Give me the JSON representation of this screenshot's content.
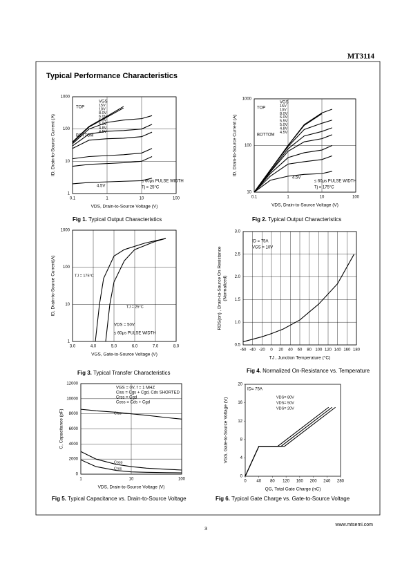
{
  "header": {
    "part_number": "MT3114"
  },
  "section_title": "Typical Performance Characteristics",
  "chart_data": [
    {
      "type": "line",
      "caption_label": "Fig 1.",
      "caption": "Typical Output Characteristics",
      "xlabel": "VDS, Drain-to-Source Voltage (V)",
      "ylabel": "ID, Drain-to-Source Current (A)",
      "xscale": "log",
      "yscale": "log",
      "grid": true,
      "xlim": [
        0.1,
        100
      ],
      "ylim": [
        1,
        1000
      ],
      "xticks": [
        0.1,
        1,
        10,
        100
      ],
      "yticks": [
        1,
        10,
        100,
        1000
      ],
      "annotations": [
        "VGS",
        "TOP",
        "BOTTOM",
        "≤ 60μs PULSE WIDTH",
        "Tj = 25°C",
        "4.5V"
      ],
      "series": [
        {
          "name": "15V",
          "color": "#000000",
          "x": [
            0.1,
            0.3,
            1,
            3
          ],
          "values": [
            40,
            120,
            250,
            500
          ]
        },
        {
          "name": "10V",
          "color": "#000000",
          "x": [
            0.1,
            0.3,
            1,
            3
          ],
          "values": [
            38,
            115,
            235,
            450
          ]
        },
        {
          "name": "8.0V",
          "color": "#000000",
          "x": [
            0.1,
            0.3,
            1,
            3,
            10,
            20
          ],
          "values": [
            35,
            100,
            160,
            190,
            210,
            260
          ]
        },
        {
          "name": "6.0V",
          "color": "#000000",
          "x": [
            0.1,
            0.3,
            1,
            3,
            10,
            20
          ],
          "values": [
            30,
            70,
            85,
            90,
            100,
            140
          ]
        },
        {
          "name": "5.5V",
          "color": "#000000",
          "x": [
            0.1,
            0.3,
            1,
            3,
            10,
            20
          ],
          "values": [
            25,
            45,
            50,
            52,
            58,
            80
          ]
        },
        {
          "name": "5.0V",
          "color": "#000000",
          "x": [
            0.1,
            0.3,
            1,
            3,
            10,
            20
          ],
          "values": [
            12,
            14,
            15,
            16,
            18,
            25
          ]
        },
        {
          "name": "4.8V",
          "color": "#000000",
          "x": [
            0.1,
            0.3,
            1,
            3,
            10,
            20
          ],
          "values": [
            7,
            8,
            8.5,
            9,
            10,
            14
          ]
        },
        {
          "name": "4.5V",
          "color": "#000000",
          "x": [
            0.1,
            0.3,
            1,
            3,
            10,
            20
          ],
          "values": [
            2,
            2.2,
            2.3,
            2.4,
            2.5,
            3
          ]
        }
      ]
    },
    {
      "type": "line",
      "caption_label": "Fig 2.",
      "caption": "Typical Output Characteristics",
      "xlabel": "VDS, Drain-to-Source Voltage (V)",
      "ylabel": "ID, Drain-to-Source Current (A)",
      "xscale": "log",
      "yscale": "log",
      "grid": true,
      "xlim": [
        0.1,
        100
      ],
      "ylim": [
        10,
        1000
      ],
      "xticks": [
        0.1,
        1,
        10,
        100
      ],
      "yticks": [
        10,
        100,
        1000
      ],
      "annotations": [
        "VGS",
        "TOP",
        "BOTTOM",
        "≤ 60μs PULSE WIDTH",
        "Tj = 175°C",
        "4.5V"
      ],
      "series": [
        {
          "name": "15V",
          "color": "#000000",
          "x": [
            0.1,
            0.3,
            1,
            3,
            10,
            20
          ],
          "values": [
            10,
            30,
            100,
            280,
            500,
            600
          ]
        },
        {
          "name": "10V",
          "color": "#000000",
          "x": [
            0.1,
            0.3,
            1,
            3,
            10
          ],
          "values": [
            10,
            30,
            100,
            270,
            480
          ]
        },
        {
          "name": "8.0V",
          "color": "#000000",
          "x": [
            0.1,
            0.3,
            1,
            3,
            10,
            20
          ],
          "values": [
            10,
            30,
            95,
            220,
            300,
            350
          ]
        },
        {
          "name": "6.0V",
          "color": "#000000",
          "x": [
            0.1,
            0.3,
            1,
            3,
            10,
            20
          ],
          "values": [
            10,
            28,
            85,
            160,
            200,
            240
          ]
        },
        {
          "name": "5.5V",
          "color": "#000000",
          "x": [
            0.1,
            0.3,
            1,
            3,
            10,
            20
          ],
          "values": [
            10,
            27,
            75,
            120,
            140,
            170
          ]
        },
        {
          "name": "5.0V",
          "color": "#000000",
          "x": [
            0.1,
            0.3,
            1,
            3,
            10,
            20
          ],
          "values": [
            10,
            25,
            55,
            70,
            80,
            100
          ]
        },
        {
          "name": "4.8V",
          "color": "#000000",
          "x": [
            0.1,
            0.3,
            1,
            3,
            10,
            20
          ],
          "values": [
            10,
            22,
            40,
            45,
            50,
            60
          ]
        },
        {
          "name": "4.5V",
          "color": "#000000",
          "x": [
            0.1,
            0.3,
            1,
            3,
            10,
            20
          ],
          "values": [
            10,
            18,
            22,
            24,
            25,
            28
          ]
        }
      ]
    },
    {
      "type": "line",
      "caption_label": "Fig 3.",
      "caption": "Typical Transfer Characteristics",
      "xlabel": "VGS, Gate-to-Source Voltage (V)",
      "ylabel": "ID, Drain-to-Source Current(A)",
      "xscale": "linear",
      "yscale": "log",
      "grid": true,
      "xlim": [
        3,
        8
      ],
      "ylim": [
        1,
        1000
      ],
      "xticks": [
        {
          "value": 3,
          "label": "3.0"
        },
        {
          "value": 4,
          "label": "4.0"
        },
        {
          "value": 5,
          "label": "5.0"
        },
        {
          "value": 6,
          "label": "6.0"
        },
        {
          "value": 7,
          "label": "7.0"
        },
        {
          "value": 8,
          "label": "8.0"
        }
      ],
      "yticks": [
        1,
        10,
        100,
        1000
      ],
      "annotations": [
        "VDS = 50V",
        "≤ 60μs PULSE WIDTH"
      ],
      "series": [
        {
          "name": "TJ = 175°C",
          "color": "#000000",
          "x": [
            4.1,
            4.3,
            4.5,
            5,
            5.5,
            6.5,
            7.5
          ],
          "values": [
            1,
            10,
            50,
            200,
            300,
            450,
            600
          ]
        },
        {
          "name": "TJ = 25°C",
          "color": "#000000",
          "x": [
            4.6,
            4.8,
            5,
            5.5,
            6,
            7,
            7.5
          ],
          "values": [
            1,
            10,
            40,
            150,
            300,
            500,
            600
          ]
        }
      ]
    },
    {
      "type": "line",
      "caption_label": "Fig 4.",
      "caption": "Normalized On-Resistance vs. Temperature",
      "xlabel": "TJ , Junction Temperature (°C)",
      "ylabel": "RDS(on) , Drain-to-Source On Resistance",
      "ylabel_note": "(Normalized)",
      "xscale": "linear",
      "yscale": "linear",
      "grid": true,
      "xlim": [
        -60,
        180
      ],
      "ylim": [
        0.5,
        3
      ],
      "xticks": [
        -60,
        -40,
        -20,
        0,
        20,
        40,
        60,
        80,
        100,
        120,
        140,
        160,
        180
      ],
      "yticks": [
        0.5,
        {
          "value": 1,
          "label": "1.0"
        },
        1.5,
        {
          "value": 2,
          "label": "2.0"
        },
        2.5,
        {
          "value": 3,
          "label": "3.0"
        }
      ],
      "annotations": [
        "ID = 75A",
        "VGS = 10V"
      ],
      "series": [
        {
          "name": "RDS(on)",
          "color": "#000000",
          "x": [
            -60,
            -20,
            0,
            25,
            60,
            100,
            140,
            175
          ],
          "values": [
            0.57,
            0.68,
            0.75,
            0.85,
            1.05,
            1.4,
            1.85,
            2.5
          ]
        }
      ]
    },
    {
      "type": "line",
      "caption_label": "Fig 5.",
      "caption": "Typical Capacitance vs. Drain-to-Source Voltage",
      "xlabel": "VDS, Drain-to-Source Voltage (V)",
      "ylabel": "C, Capacitance (pF)",
      "xscale": "log",
      "yscale": "linear",
      "grid": true,
      "xlim": [
        1,
        100
      ],
      "ylim": [
        0,
        12000
      ],
      "xticks": [
        1,
        10,
        100
      ],
      "yticks": [
        0,
        2000,
        4000,
        6000,
        8000,
        10000,
        12000
      ],
      "annotations": [
        "VGS = 0V,    f = 1 MHZ",
        "Ciss = Cgs + Cgd, Cds SHORTED",
        "Crss = Cgd",
        "Coss = Cds + Cgd"
      ],
      "series": [
        {
          "name": "Ciss",
          "color": "#000000",
          "x": [
            1,
            2,
            5,
            10,
            20,
            50,
            100
          ],
          "values": [
            8600,
            8400,
            8200,
            8000,
            7800,
            7500,
            7300
          ]
        },
        {
          "name": "Coss",
          "color": "#000000",
          "x": [
            1,
            2,
            5,
            10,
            20,
            50,
            100
          ],
          "values": [
            3000,
            2000,
            1300,
            1000,
            800,
            650,
            550
          ]
        },
        {
          "name": "Crss",
          "color": "#000000",
          "x": [
            1,
            2,
            5,
            10,
            20,
            50,
            100
          ],
          "values": [
            1900,
            1000,
            500,
            300,
            250,
            200,
            180
          ]
        }
      ]
    },
    {
      "type": "line",
      "caption_label": "Fig 6.",
      "caption": "Typical Gate Charge vs. Gate-to-Source Voltage",
      "xlabel": "QG, Total Gate Charge (nC)",
      "ylabel": "VGS, Gate-to-Source Voltage (V)",
      "xscale": "linear",
      "yscale": "linear",
      "grid": false,
      "xlim": [
        0,
        280
      ],
      "ylim": [
        0,
        20
      ],
      "xticks": [
        0,
        40,
        80,
        120,
        160,
        200,
        240,
        280
      ],
      "yticks": [
        0,
        4,
        8,
        12,
        16,
        20
      ],
      "annotations": [
        "ID= 75A"
      ],
      "series": [
        {
          "name": "VDS= 80V",
          "color": "#000000",
          "x": [
            0,
            40,
            115,
            265
          ],
          "values": [
            0,
            6.5,
            6.5,
            15
          ]
        },
        {
          "name": "VDS= 50V",
          "color": "#000000",
          "x": [
            0,
            40,
            105,
            255
          ],
          "values": [
            0,
            6.5,
            6.5,
            15
          ]
        },
        {
          "name": "VDS= 20V",
          "color": "#000000",
          "x": [
            0,
            40,
            95,
            245
          ],
          "values": [
            0,
            6.5,
            6.5,
            15
          ]
        }
      ]
    }
  ],
  "footer": {
    "page_number": "3",
    "website": "www.mtsemi.com"
  }
}
